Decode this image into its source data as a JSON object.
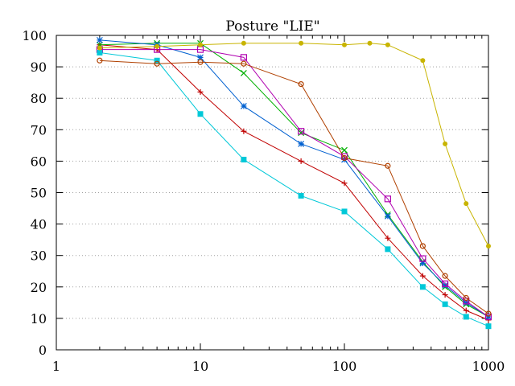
{
  "chart_data": {
    "type": "line",
    "title": "Posture \"LIE\"",
    "xlabel": "",
    "ylabel": "",
    "x_scale": "log",
    "xlim": [
      1,
      1000
    ],
    "ylim": [
      0,
      100
    ],
    "x_ticks": [
      1,
      10,
      100,
      1000
    ],
    "x_tick_labels": [
      "1",
      "10",
      "100",
      "1000"
    ],
    "y_ticks": [
      0,
      10,
      20,
      30,
      40,
      50,
      60,
      70,
      80,
      90,
      100
    ],
    "y_tick_labels": [
      "0",
      "10",
      "20",
      "30",
      "40",
      "50",
      "60",
      "70",
      "80",
      "90",
      "100"
    ],
    "grid": "horizontal dotted",
    "border": "box",
    "series": [
      {
        "color": "#c00000",
        "marker": "plus",
        "points": [
          [
            2,
            97
          ],
          [
            5,
            95.5
          ],
          [
            10,
            82
          ],
          [
            20,
            69.5
          ],
          [
            50,
            60
          ],
          [
            100,
            53
          ],
          [
            200,
            35.5
          ],
          [
            350,
            23.5
          ],
          [
            500,
            17.5
          ],
          [
            700,
            12.5
          ],
          [
            1000,
            9.5
          ]
        ]
      },
      {
        "color": "#00b000",
        "marker": "cross",
        "points": [
          [
            2,
            97
          ],
          [
            5,
            97.5
          ],
          [
            10,
            97.5
          ],
          [
            20,
            88
          ],
          [
            50,
            69
          ],
          [
            100,
            63.5
          ],
          [
            200,
            43
          ],
          [
            350,
            28
          ],
          [
            500,
            20
          ],
          [
            700,
            14.5
          ],
          [
            1000,
            10.5
          ]
        ]
      },
      {
        "color": "#0060d0",
        "marker": "star",
        "points": [
          [
            2,
            98.5
          ],
          [
            5,
            97
          ],
          [
            10,
            93
          ],
          [
            20,
            77.5
          ],
          [
            50,
            65.5
          ],
          [
            100,
            60.5
          ],
          [
            200,
            42.5
          ],
          [
            350,
            27.5
          ],
          [
            500,
            20.5
          ],
          [
            700,
            15
          ],
          [
            1000,
            10.5
          ]
        ]
      },
      {
        "color": "#b000b0",
        "marker": "open-square",
        "points": [
          [
            2,
            95.5
          ],
          [
            5,
            95.5
          ],
          [
            10,
            95.5
          ],
          [
            20,
            93
          ],
          [
            50,
            69.5
          ],
          [
            100,
            61.5
          ],
          [
            200,
            48
          ],
          [
            350,
            29
          ],
          [
            500,
            21
          ],
          [
            700,
            15.5
          ],
          [
            1000,
            10.5
          ]
        ]
      },
      {
        "color": "#00c8d8",
        "marker": "filled-square",
        "points": [
          [
            2,
            94.5
          ],
          [
            5,
            92
          ],
          [
            10,
            75
          ],
          [
            20,
            60.5
          ],
          [
            50,
            49
          ],
          [
            100,
            44
          ],
          [
            200,
            32
          ],
          [
            350,
            20
          ],
          [
            500,
            14.5
          ],
          [
            700,
            10.5
          ],
          [
            1000,
            7.5
          ]
        ]
      },
      {
        "color": "#c8b400",
        "marker": "filled-circle",
        "points": [
          [
            2,
            96
          ],
          [
            5,
            96.5
          ],
          [
            10,
            97
          ],
          [
            20,
            97.5
          ],
          [
            50,
            97.5
          ],
          [
            100,
            97
          ],
          [
            150,
            97.5
          ],
          [
            200,
            97
          ],
          [
            350,
            92
          ],
          [
            500,
            65.5
          ],
          [
            700,
            46.5
          ],
          [
            1000,
            33
          ]
        ]
      },
      {
        "color": "#b04000",
        "marker": "open-circle",
        "points": [
          [
            2,
            92
          ],
          [
            5,
            91
          ],
          [
            10,
            91.5
          ],
          [
            20,
            91
          ],
          [
            50,
            84.5
          ],
          [
            100,
            61
          ],
          [
            200,
            58.5
          ],
          [
            350,
            33
          ],
          [
            500,
            23.5
          ],
          [
            700,
            16.5
          ],
          [
            1000,
            11.5
          ]
        ]
      }
    ]
  }
}
